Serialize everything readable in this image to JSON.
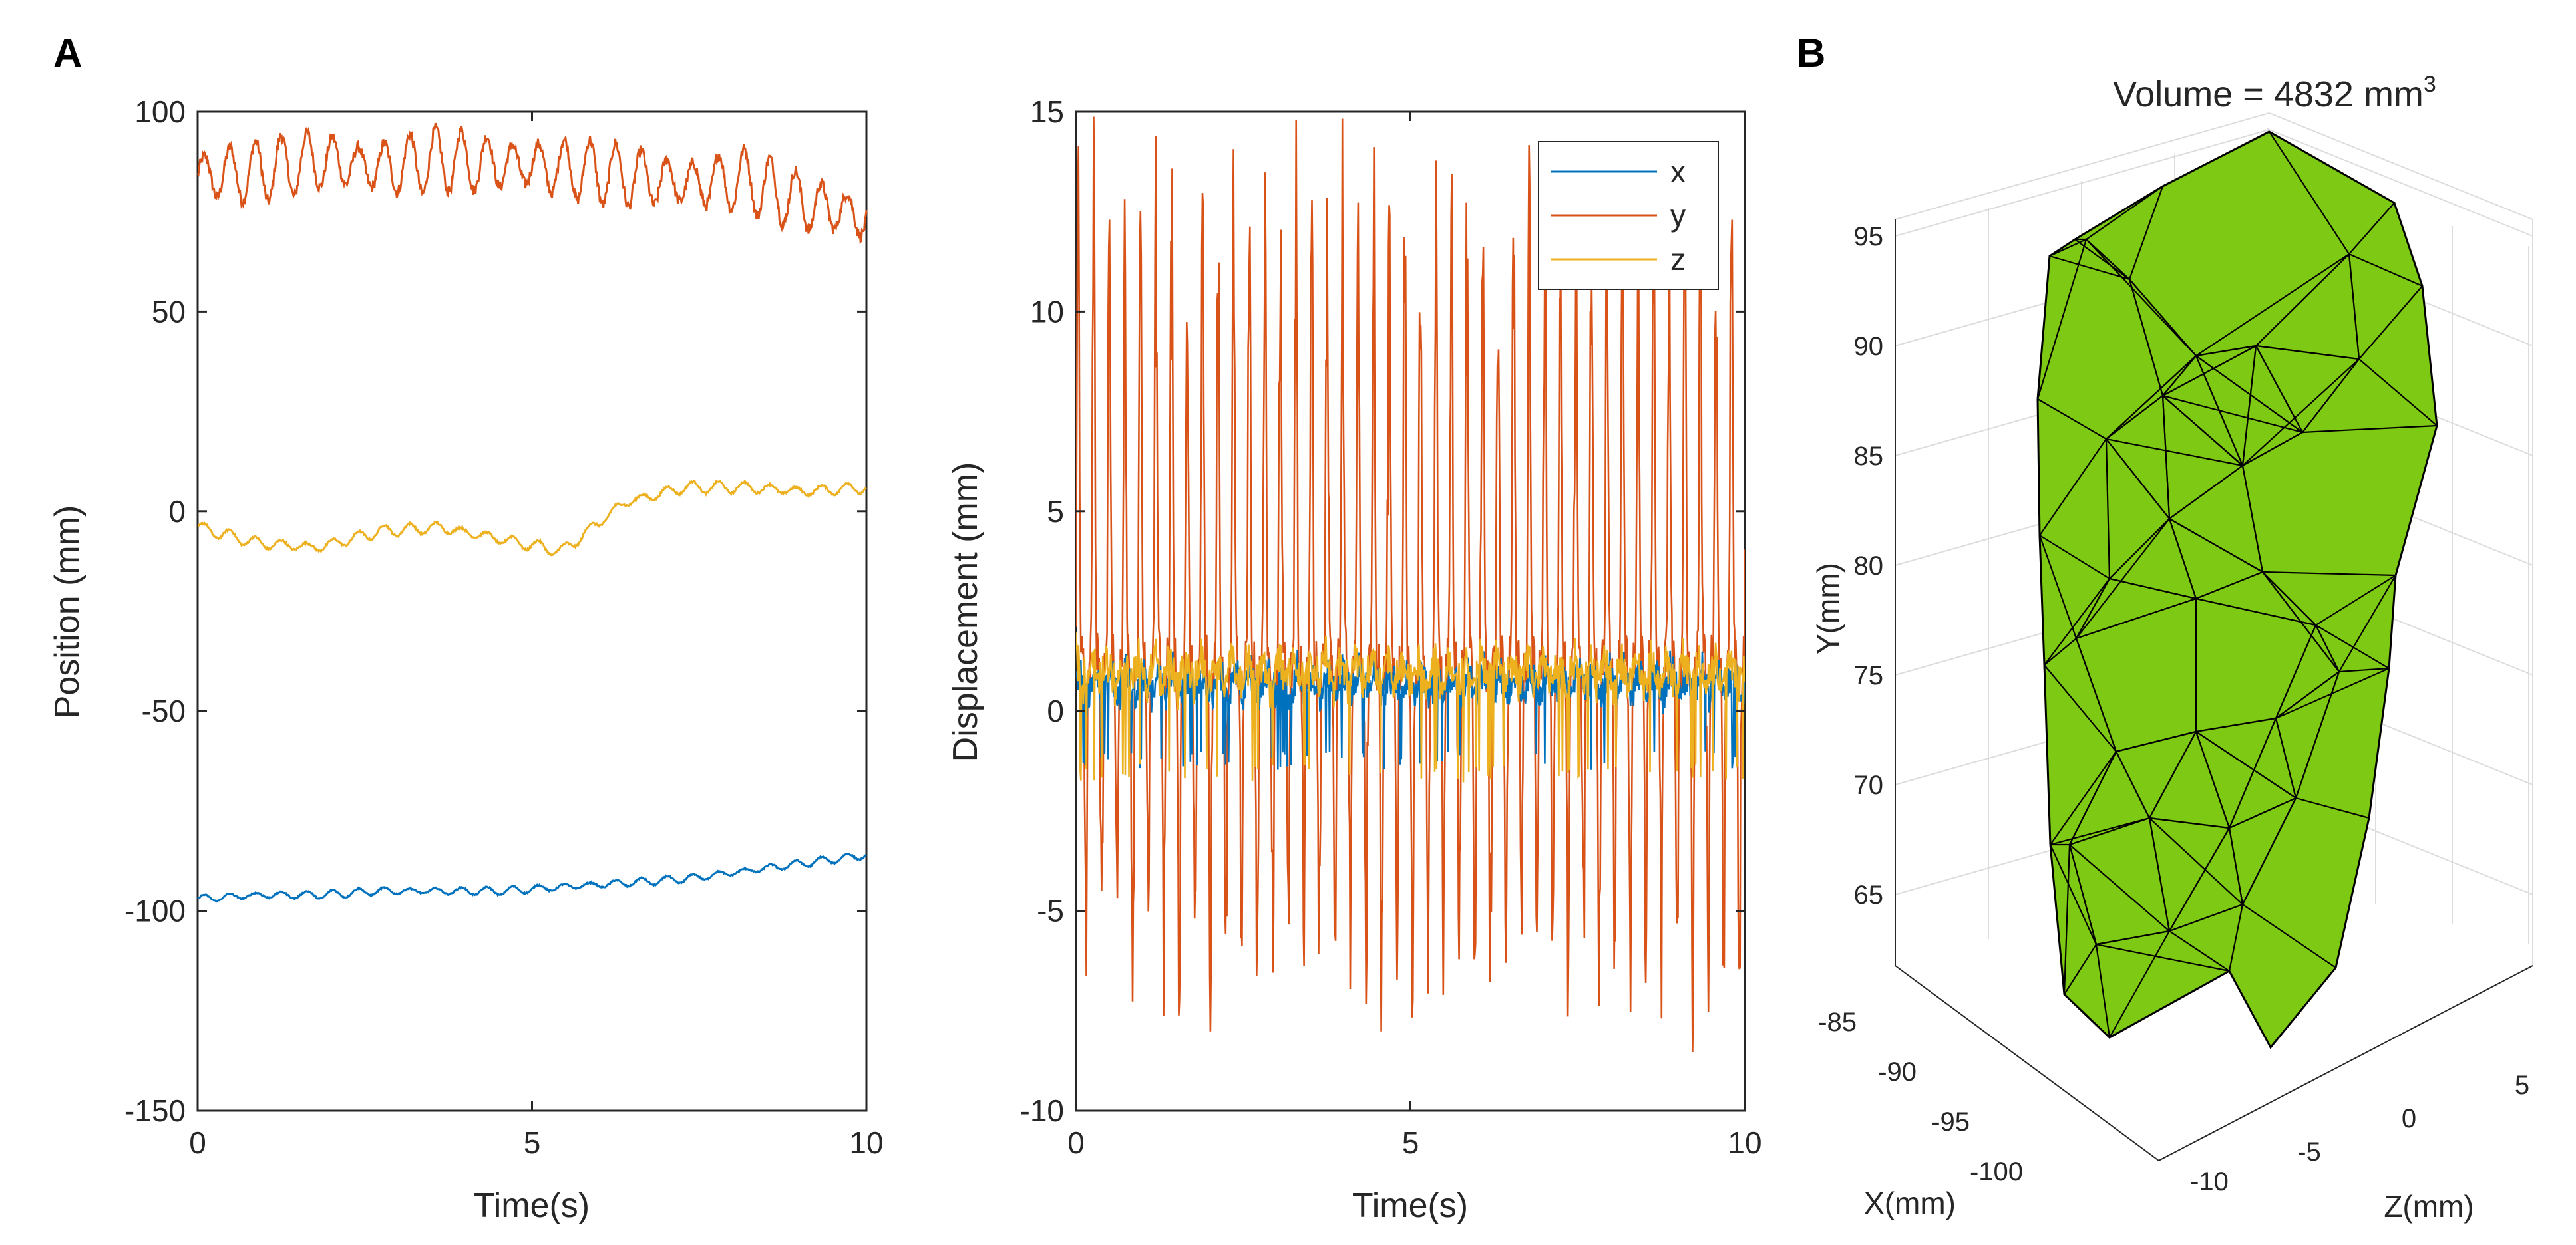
{
  "panel_labels": [
    "A",
    "B"
  ],
  "chart_data": [
    {
      "type": "line",
      "xlabel": "Time(s)",
      "ylabel": "Position (mm)",
      "xlim": [
        0,
        10
      ],
      "ylim": [
        -150,
        100
      ],
      "xticks": [
        "0",
        "5",
        "10"
      ],
      "yticks": [
        "-150",
        "-100",
        "-50",
        "0",
        "50",
        "100"
      ],
      "grid": false,
      "series": [
        {
          "color": "#D95319",
          "baseline": [
            84,
            85,
            88,
            86,
            88,
            87,
            86,
            84,
            82,
            83,
            77,
            74
          ],
          "amplitude": 8,
          "frequency_hz": 2.6
        },
        {
          "color": "#EDB120",
          "baseline": [
            -4,
            -8,
            -9,
            -5,
            -4,
            -7,
            -10,
            2,
            6,
            6,
            5,
            6
          ],
          "amplitude": 1.5,
          "frequency_hz": 2.6
        },
        {
          "color": "#0072BD",
          "baseline": [
            -97,
            -96,
            -96,
            -95,
            -95,
            -95,
            -94,
            -93,
            -92,
            -90,
            -88,
            -86
          ],
          "amplitude": 1,
          "frequency_hz": 2.6
        }
      ]
    },
    {
      "type": "line",
      "xlabel": "Time(s)",
      "ylabel": "Displacement (mm)",
      "xlim": [
        0,
        10
      ],
      "ylim": [
        -10,
        15
      ],
      "xticks": [
        "0",
        "5",
        "10"
      ],
      "yticks": [
        "-10",
        "-5",
        "0",
        "5",
        "10",
        "15"
      ],
      "grid": false,
      "legend": {
        "location": "top-right",
        "entries": [
          "x",
          "y",
          "z"
        ]
      },
      "series": [
        {
          "name": "x",
          "color": "#0072BD",
          "mean": 0.7,
          "spike_min": -1.5,
          "spike_max": 1.8
        },
        {
          "name": "y",
          "color": "#D95319",
          "mean": 1.2,
          "spike_min": -8,
          "spike_max": 15
        },
        {
          "name": "z",
          "color": "#EDB120",
          "mean": 1.0,
          "spike_min": -1.8,
          "spike_max": 2.3
        }
      ]
    },
    {
      "type": "3d-surface",
      "title": "Volume = 4832 mm",
      "title_superscript": "3",
      "xlabel": "X(mm)",
      "ylabel": "Y(mm)",
      "zlabel": "Z(mm)",
      "xticks": [
        "-85",
        "-90",
        "-95",
        "-100"
      ],
      "yticks": [
        "65",
        "70",
        "75",
        "80",
        "85",
        "90",
        "95"
      ],
      "zticks": [
        "-10",
        "-5",
        "0",
        "5"
      ],
      "face_color": "#7DC913",
      "edge_color": "#000000",
      "grid": true
    }
  ]
}
